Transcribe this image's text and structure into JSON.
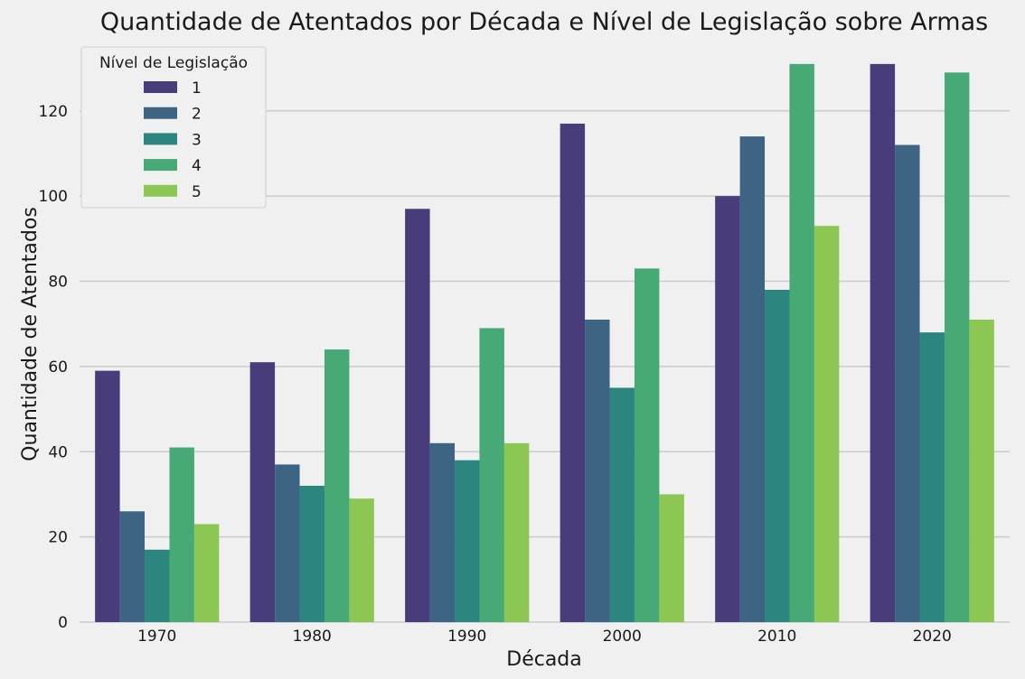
{
  "chart_data": {
    "type": "bar",
    "title": "Quantidade de Atentados por Década e Nível de Legislação sobre Armas",
    "xlabel": "Década",
    "ylabel": "Quantidade de Atentados",
    "categories": [
      "1970",
      "1980",
      "1990",
      "2000",
      "2010",
      "2020"
    ],
    "ylim": [
      0,
      135
    ],
    "yticks": [
      0,
      20,
      40,
      60,
      80,
      100,
      120
    ],
    "grid": "horizontal",
    "legend": {
      "title": "Nível de Legislação",
      "placement": "top-left"
    },
    "series": [
      {
        "name": "1",
        "color": "#483d7a",
        "values": [
          59,
          61,
          97,
          117,
          100,
          131
        ]
      },
      {
        "name": "2",
        "color": "#3d6583",
        "values": [
          26,
          37,
          42,
          71,
          114,
          112
        ]
      },
      {
        "name": "3",
        "color": "#2d857f",
        "values": [
          17,
          32,
          38,
          55,
          78,
          68
        ]
      },
      {
        "name": "4",
        "color": "#46a976",
        "values": [
          41,
          64,
          69,
          83,
          131,
          129
        ]
      },
      {
        "name": "5",
        "color": "#8cc653",
        "values": [
          23,
          29,
          42,
          30,
          93,
          71
        ]
      }
    ]
  }
}
